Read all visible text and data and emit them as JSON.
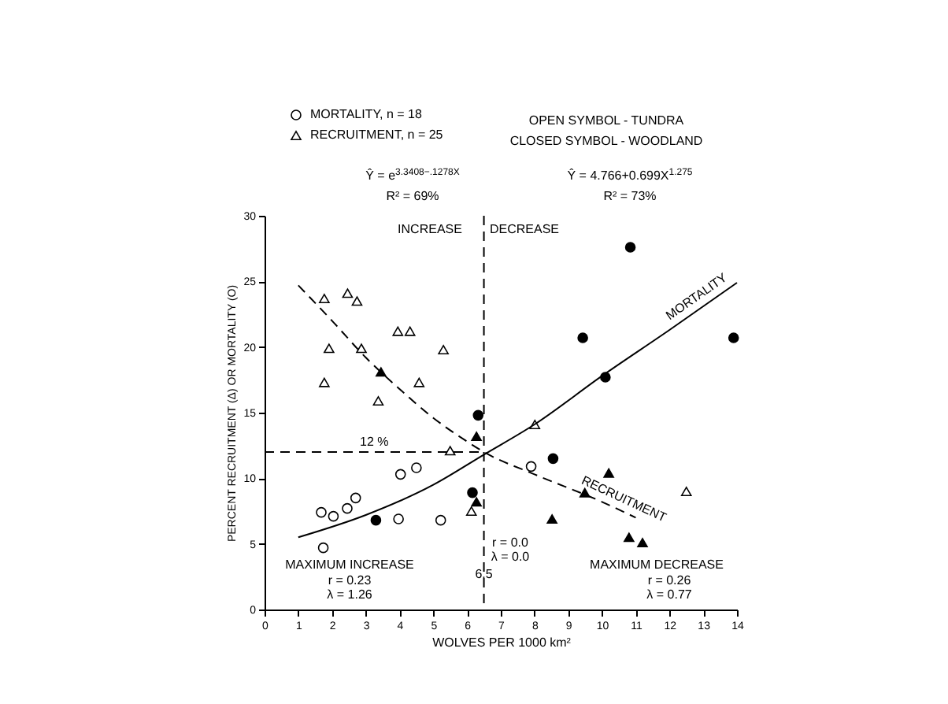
{
  "chart_data": {
    "type": "scatter",
    "xlabel": "WOLVES PER 1000 km²",
    "ylabel": "PERCENT RECRUITMENT (Δ)   OR MORTALITY (O)",
    "xlim": [
      0,
      14
    ],
    "xticks": [
      0,
      1,
      2,
      3,
      4,
      5,
      6,
      7,
      8,
      9,
      10,
      11,
      12,
      13,
      14
    ],
    "ylim": [
      0,
      30
    ],
    "yticks": [
      0,
      5,
      10,
      15,
      20,
      25,
      30
    ],
    "legend": "top left",
    "series": [
      {
        "name": "MORTALITY, n = 18",
        "color": "#ffffff",
        "marker": "circle",
        "x": [
          1.68,
          1.74,
          2.04,
          2.45,
          2.7,
          3.97,
          4.03,
          4.5,
          5.22,
          7.9
        ],
        "values": [
          7.4,
          4.7,
          7.1,
          7.7,
          8.5,
          6.9,
          10.3,
          10.8,
          6.8,
          10.9
        ]
      },
      {
        "name": "RECRUITMENT, n = 25",
        "color": "#ffffff",
        "marker": "triangle",
        "x": [
          1.77,
          1.77,
          1.91,
          2.46,
          2.74,
          2.87,
          3.37,
          3.95,
          4.31,
          4.58,
          5.3,
          5.5,
          6.13,
          8.01,
          12.5
        ],
        "values": [
          23.7,
          17.3,
          19.9,
          24.1,
          23.5,
          19.9,
          15.9,
          21.2,
          21.2,
          17.3,
          19.8,
          12.1,
          7.5,
          14.1,
          9.0
        ]
      },
      {
        "color": "#000000",
        "marker": "circle",
        "x": [
          3.3,
          6.16,
          6.33,
          8.55,
          9.43,
          10.1,
          10.84,
          13.9
        ],
        "values": [
          6.8,
          8.9,
          14.8,
          11.5,
          20.7,
          17.7,
          27.6,
          20.7
        ]
      },
      {
        "color": "#000000",
        "marker": "triangle",
        "x": [
          3.45,
          6.28,
          6.28,
          8.52,
          9.49,
          10.2,
          10.8,
          11.2
        ],
        "values": [
          18.1,
          13.2,
          8.2,
          6.9,
          8.9,
          10.4,
          5.5,
          5.1
        ]
      },
      {
        "type": "line",
        "name": "MORTALITY",
        "color": "#000000",
        "line_style": "solid",
        "marker": "none",
        "x": [
          1,
          3,
          5,
          6.5,
          8,
          10,
          12,
          14
        ],
        "values": [
          5.5,
          7.2,
          9.5,
          11.8,
          14.1,
          17.8,
          21.3,
          24.9
        ]
      },
      {
        "type": "line",
        "name": "RECRUITMENT",
        "color": "#000000",
        "line_style": "dashed",
        "marker": "none",
        "x": [
          1,
          2,
          3,
          4,
          5,
          6,
          6.5,
          8,
          10,
          11
        ],
        "values": [
          24.7,
          22,
          19.2,
          16.8,
          14.6,
          12.8,
          12,
          10.3,
          8.2,
          7.0
        ]
      }
    ],
    "ref_lines": [
      {
        "axis": "x",
        "value": 6.5,
        "label": "6.5",
        "color": "#000000",
        "line_style": "dashed"
      },
      {
        "axis": "y",
        "value": 12,
        "label": "12 %",
        "color": "#000000",
        "line_style": "dashed"
      }
    ],
    "annotations": [
      "OPEN SYMBOL - TUNDRA",
      "CLOSED SYMBOL - WOODLAND",
      "Ŷ = e$^{3.3408−.1278X}$",
      "R² = 69%",
      "Ŷ = 4.766+0.699X$^{1.275}$",
      "R² = 73%",
      "INCREASE",
      "DECREASE",
      "MAXIMUM INCREASE",
      "r = 0.23",
      "λ = 1.26",
      "r = 0.0",
      "λ = 0.0",
      "MAXIMUM DECREASE",
      "r = 0.26",
      "λ = 0.77"
    ]
  }
}
